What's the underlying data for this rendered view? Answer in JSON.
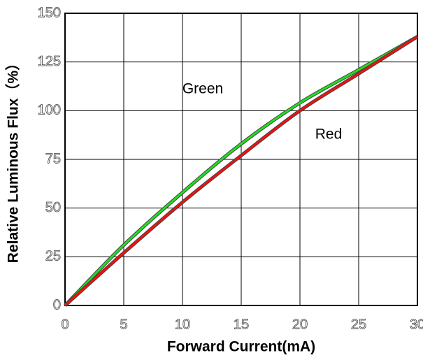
{
  "chart_data": {
    "type": "line",
    "xlabel": "Forward Current(mA)",
    "ylabel": "Relative Luminous Flux（%）",
    "x": [
      0,
      5,
      10,
      15,
      20,
      25,
      30
    ],
    "series": [
      {
        "name": "Green",
        "color": "#22dd22",
        "values": [
          0,
          31,
          58,
          83,
          104,
          121,
          138
        ]
      },
      {
        "name": "Red",
        "color": "#ee1111",
        "values": [
          0,
          27,
          53,
          77,
          100,
          119,
          138
        ]
      }
    ],
    "xlim": [
      0,
      30
    ],
    "xticks": [
      0,
      5,
      10,
      15,
      20,
      25,
      30
    ],
    "ylim": [
      0,
      150
    ],
    "yticks": [
      0,
      25,
      50,
      75,
      100,
      125,
      150
    ],
    "grid": true
  }
}
